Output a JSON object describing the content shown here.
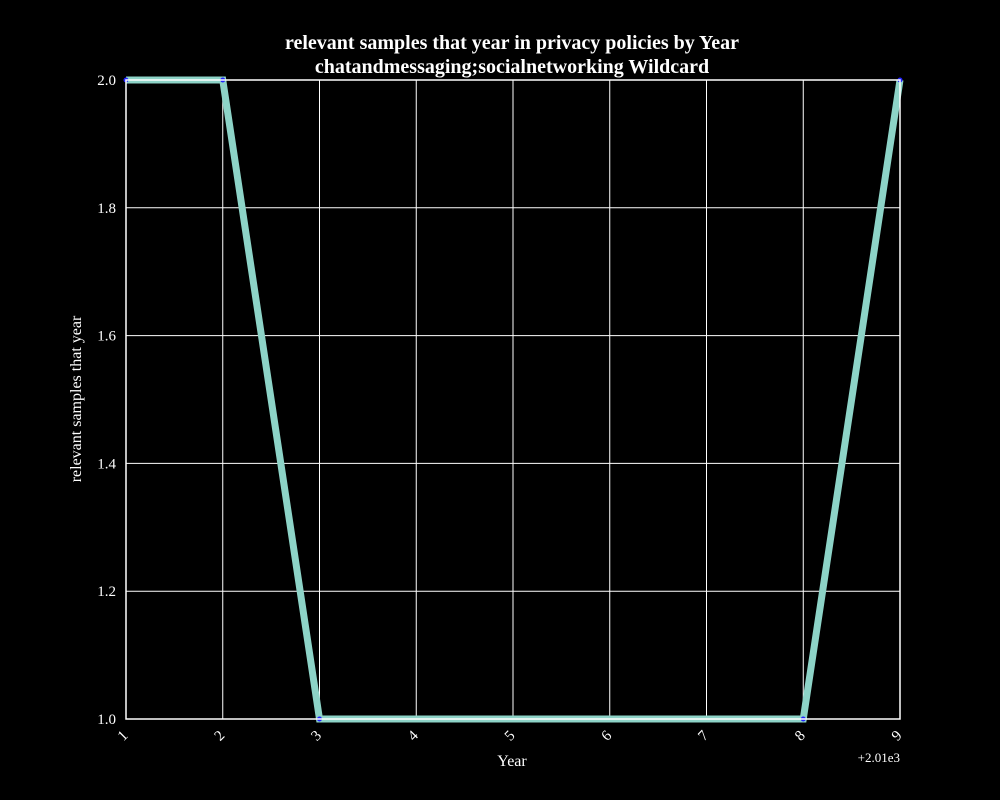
{
  "chart_data": {
    "type": "line",
    "title": "relevant samples that year in privacy policies by Year",
    "subtitle": "chatandmessaging;socialnetworking Wildcard",
    "xlabel": "Year",
    "ylabel": "relevant samples that year",
    "x_offset_label": "+2.01e3",
    "x_ticks": [
      "1",
      "2",
      "3",
      "4",
      "5",
      "6",
      "7",
      "8",
      "9"
    ],
    "y_ticks": [
      "1.0",
      "1.2",
      "1.4",
      "1.6",
      "1.8",
      "2.0"
    ],
    "xlim": [
      2011,
      2019
    ],
    "ylim": [
      1.0,
      2.0
    ],
    "grid": true,
    "series": [
      {
        "x": [
          2011,
          2012,
          2013,
          2018,
          2019
        ],
        "y": [
          2,
          2,
          1,
          1,
          2
        ],
        "color": "#8dd3c7",
        "marker_color": "#2222ff"
      }
    ],
    "colors": {
      "background": "#000000",
      "axes": "#ffffff",
      "grid": "#ffffff",
      "text": "#ffffff"
    }
  }
}
